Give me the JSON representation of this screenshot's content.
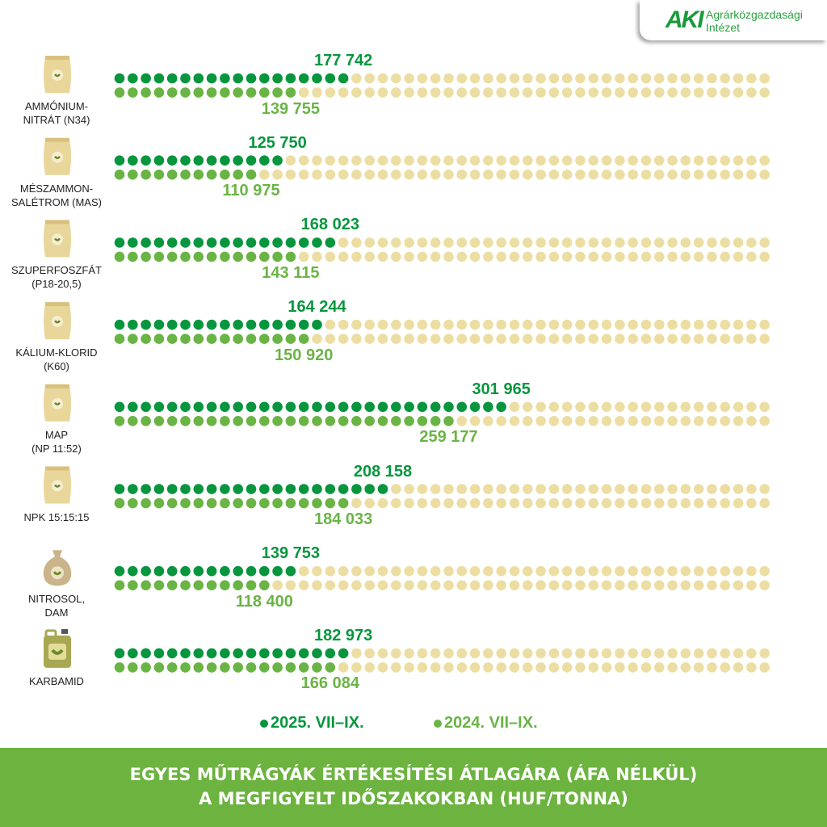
{
  "logo": {
    "mark": "AKI",
    "name_line1": "Agrárközgazdasági",
    "name_line2": "Intézet"
  },
  "colors": {
    "series_2025": "#07963e",
    "series_2024": "#6ab445",
    "empty_dot": "#ecdea3",
    "footer": "#6cb33f"
  },
  "chart_data": {
    "type": "bar",
    "style": "dot-matrix (1 dot = 10 000 HUF, 50 dots per row)",
    "categories": [
      {
        "label": [
          "AMMÓNIUM-",
          "NITRÁT (N34)"
        ],
        "icon": "bag-icon"
      },
      {
        "label": [
          "MÉSZAMMON-",
          "SALÉTROM (MAS)"
        ],
        "icon": "bag-icon"
      },
      {
        "label": [
          "SZUPERFOSZFÁT",
          "(P18-20,5)"
        ],
        "icon": "bag-icon"
      },
      {
        "label": [
          "KÁLIUM-KLORID",
          "(K60)"
        ],
        "icon": "bag-icon"
      },
      {
        "label": [
          "MAP",
          "(NP 11:52)"
        ],
        "icon": "bag-icon"
      },
      {
        "label": [
          "NPK 15:15:15"
        ],
        "icon": "bag-icon"
      },
      {
        "label": [
          "NITROSOL,",
          "DAM"
        ],
        "icon": "sack-icon"
      },
      {
        "label": [
          "KARBAMID"
        ],
        "icon": "canister-icon"
      }
    ],
    "series": [
      {
        "name": "2025. VII–IX.",
        "values": [
          177742,
          125750,
          168023,
          164244,
          301965,
          208158,
          139753,
          182973
        ],
        "labels": [
          "177 742",
          "125 750",
          "168 023",
          "164 244",
          "301 965",
          "208 158",
          "139 753",
          "182 973"
        ]
      },
      {
        "name": "2024. VII–IX.",
        "values": [
          139755,
          110975,
          143115,
          150920,
          259177,
          184033,
          118400,
          166084
        ],
        "labels": [
          "139 755",
          "110 975",
          "143 115",
          "150 920",
          "259 177",
          "184 033",
          "118 400",
          "166 084"
        ]
      }
    ],
    "xlim": [
      0,
      500000
    ],
    "unit_per_dot": 10000,
    "legend_position": "bottom",
    "title": [
      "EGYES MŰTRÁGYÁK ÉRTÉKESÍTÉSI ÁTLAGÁRA (ÁFA NÉLKÜL)",
      "A MEGFIGYELT IDŐSZAKOKBAN (HUF/TONNA)"
    ]
  }
}
